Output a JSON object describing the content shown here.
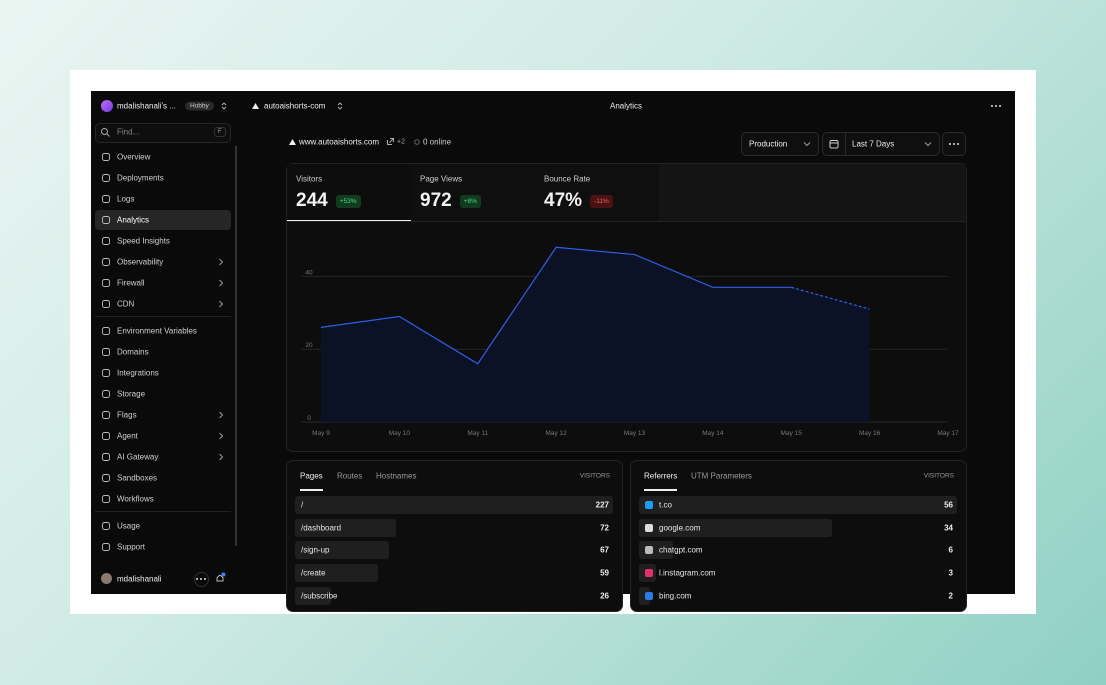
{
  "topbar": {
    "team": "mdalishanali's ...",
    "plan": "Hobby",
    "project": "autoaishorts-com",
    "page": "Analytics"
  },
  "sidebar": {
    "search": "Find...",
    "shortcut": "F",
    "active": 3,
    "groups": [
      [
        {
          "label": "Overview"
        },
        {
          "label": "Deployments"
        },
        {
          "label": "Logs"
        },
        {
          "label": "Analytics"
        },
        {
          "label": "Speed Insights"
        },
        {
          "label": "Observability",
          "expandable": true
        },
        {
          "label": "Firewall",
          "expandable": true
        },
        {
          "label": "CDN",
          "expandable": true
        }
      ],
      [
        {
          "label": "Environment Variables"
        },
        {
          "label": "Domains"
        },
        {
          "label": "Integrations"
        },
        {
          "label": "Storage"
        },
        {
          "label": "Flags",
          "expandable": true
        },
        {
          "label": "Agent",
          "expandable": true
        },
        {
          "label": "AI Gateway",
          "expandable": true
        },
        {
          "label": "Sandboxes"
        },
        {
          "label": "Workflows"
        }
      ],
      [
        {
          "label": "Usage"
        },
        {
          "label": "Support"
        }
      ]
    ],
    "user": "mdalishanali"
  },
  "header": {
    "site": "www.autoaishorts.com",
    "site_extra": "+2",
    "online": "0 online",
    "environment": "Production",
    "range": "Last 7 Days"
  },
  "stats": [
    {
      "label": "Visitors",
      "value": "244",
      "delta": "+53%",
      "trend": "up"
    },
    {
      "label": "Page Views",
      "value": "972",
      "delta": "+8%",
      "trend": "up"
    },
    {
      "label": "Bounce Rate",
      "value": "47%",
      "delta": "-11%",
      "trend": "down"
    }
  ],
  "chart": {
    "type": "line",
    "categories": [
      "May 9",
      "May 10",
      "May 11",
      "May 12",
      "May 13",
      "May 14",
      "May 15",
      "May 16",
      "May 17"
    ],
    "values": [
      26,
      29,
      16,
      48,
      46,
      37,
      37,
      31,
      null
    ],
    "ylim": [
      0,
      50
    ],
    "yticks": [
      0,
      20,
      40
    ],
    "grid": true,
    "color": "#2d5fe6",
    "dashed_last_segment": true
  },
  "pages": {
    "tabs": [
      "Pages",
      "Routes",
      "Hostnames"
    ],
    "column": "VISITORS",
    "rows": [
      {
        "label": "/",
        "value": 227
      },
      {
        "label": "/dashboard",
        "value": 72
      },
      {
        "label": "/sign-up",
        "value": 67
      },
      {
        "label": "/create",
        "value": 59
      },
      {
        "label": "/subscribe",
        "value": 26
      }
    ]
  },
  "referrers": {
    "tabs": [
      "Referrers",
      "UTM Parameters"
    ],
    "column": "VISITORS",
    "rows": [
      {
        "label": "t.co",
        "value": 56,
        "icon_color": "#1d9bf0"
      },
      {
        "label": "google.com",
        "value": 34,
        "icon_color": "#dddddd"
      },
      {
        "label": "chatgpt.com",
        "value": 6,
        "icon_color": "#bbbbbb"
      },
      {
        "label": "l.instagram.com",
        "value": 3,
        "icon_color": "#e1306c"
      },
      {
        "label": "bing.com",
        "value": 2,
        "icon_color": "#2d7be0"
      }
    ]
  }
}
